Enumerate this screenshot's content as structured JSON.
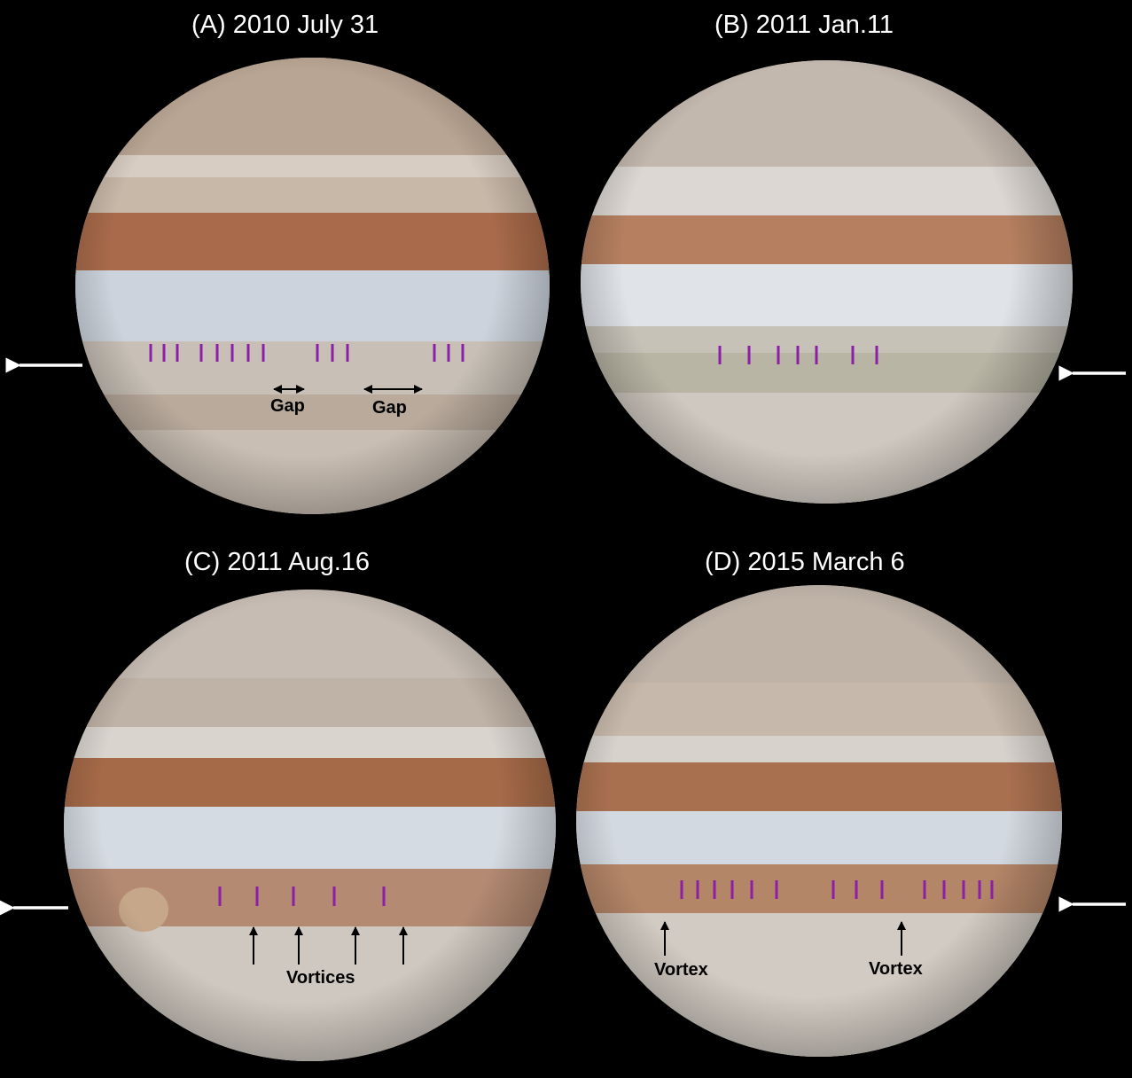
{
  "panels": {
    "a": {
      "title": "(A)  2010 July 31",
      "labels": [
        "Gap",
        "Gap"
      ]
    },
    "b": {
      "title": "(B)  2011 Jan.11"
    },
    "c": {
      "title": "(C)  2011 Aug.16",
      "labels": [
        "Vortices"
      ]
    },
    "d": {
      "title": "(D)  2015 March 6",
      "labels": [
        "Vortex",
        "Vortex"
      ]
    }
  },
  "colors": {
    "background": "#000000",
    "tick_marks": "#8b1fa8",
    "pointer_arrows": "#ffffff",
    "annotation_arrows": "#000000",
    "belt_brown": "#a0684a",
    "zone_light": "#d9d6d2",
    "zone_blue": "#c3cedb"
  }
}
